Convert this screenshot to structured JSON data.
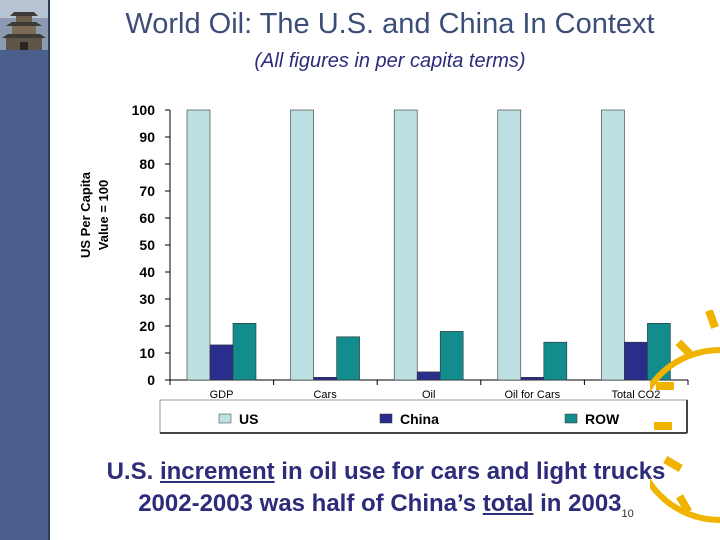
{
  "slide": {
    "title": "World Oil: The U.S. and China In Context",
    "subtitle": "(All figures in per capita terms)",
    "caption": {
      "line1_before": "U.S. ",
      "line1_underlined": "increment",
      "line1_after": " in oil use for cars and light trucks",
      "line2_before": "2002-2003 was half of China’s ",
      "line2_underlined": "total",
      "line2_after": " in 2003"
    },
    "page_number": "10"
  },
  "colors": {
    "sidebar": "#4a5e8c",
    "title": "#3c4e78",
    "text": "#2c2c7a",
    "us": "#bde0e3",
    "china": "#2b2d8c",
    "row": "#128c8c"
  },
  "chart_data": {
    "type": "bar",
    "title": "",
    "ylabel": "US Per Capita Value = 100",
    "ylabel_lines": [
      "US Per Capita",
      "Value = 100"
    ],
    "xlabel": "",
    "ylim": [
      0,
      100
    ],
    "yticks": [
      "0",
      "10",
      "20",
      "30",
      "40",
      "50",
      "60",
      "70",
      "80",
      "90",
      "100"
    ],
    "categories": [
      "GDP",
      "Cars",
      "Oil",
      "Oil for Cars",
      "Total CO2"
    ],
    "series": [
      {
        "name": "US",
        "color": "#bde0e3",
        "values": [
          100,
          100,
          100,
          100,
          100
        ]
      },
      {
        "name": "China",
        "color": "#2b2d8c",
        "values": [
          13,
          1,
          3,
          1,
          14
        ]
      },
      {
        "name": "ROW",
        "color": "#128c8c",
        "values": [
          21,
          16,
          18,
          14,
          21
        ]
      }
    ],
    "legend_position": "bottom"
  }
}
